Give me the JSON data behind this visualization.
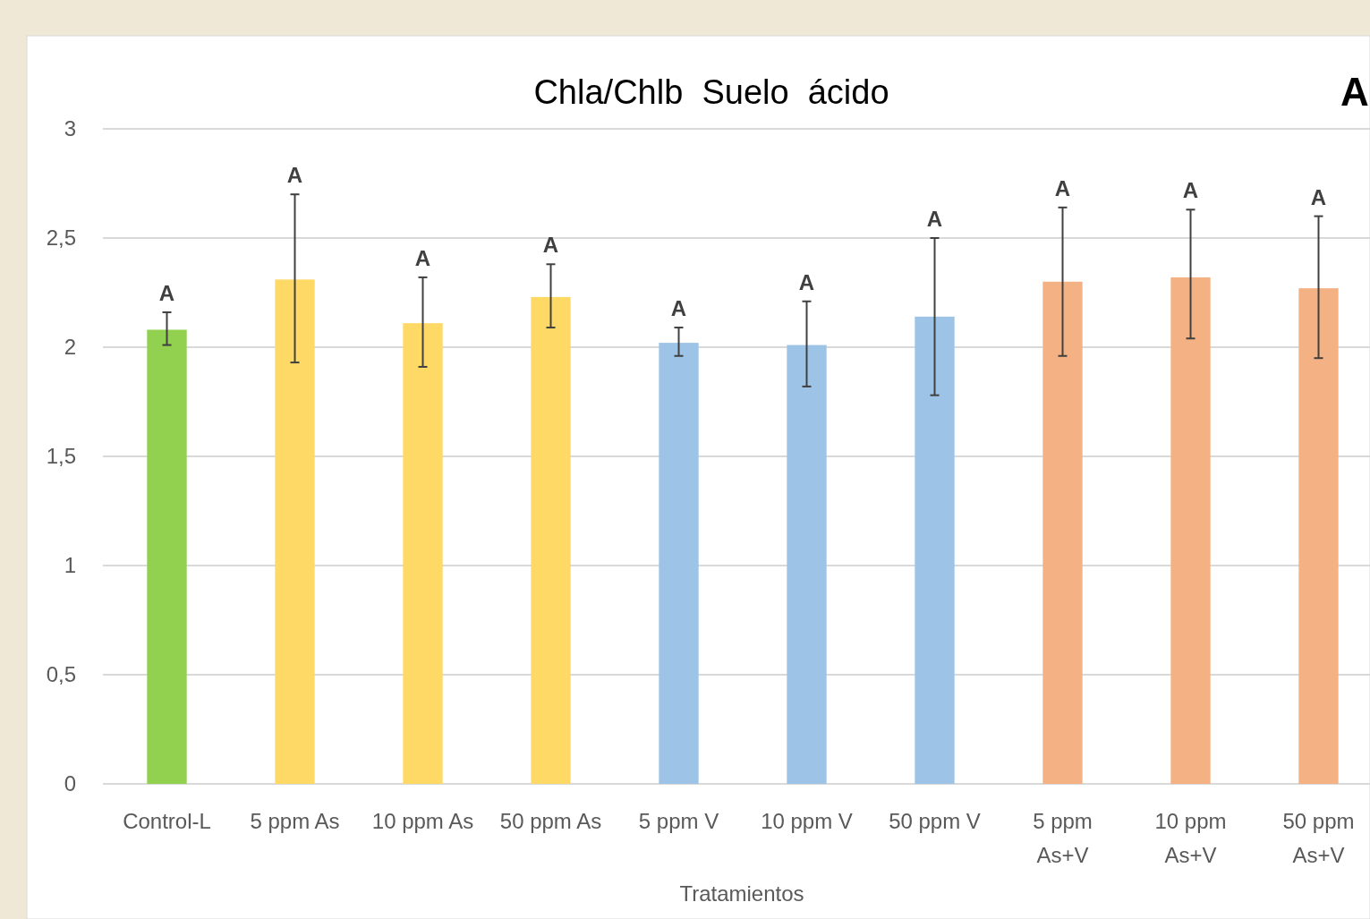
{
  "chart_data": {
    "type": "bar",
    "title": "Chla/Chlb  Suelo  ácido",
    "xlabel": "Tratamientos",
    "categories": [
      "Control-L",
      "5 ppm As",
      "10 ppm As",
      "50 ppm As",
      "5 ppm V",
      "10 ppm V",
      "50 ppm V",
      "5 ppm As+V",
      "10 ppm As+V",
      "50 ppm As+V"
    ],
    "values": [
      2.08,
      2.31,
      2.11,
      2.23,
      2.02,
      2.01,
      2.14,
      2.3,
      2.32,
      2.27
    ],
    "colors": [
      "#92d050",
      "#ffd966",
      "#ffd966",
      "#ffd966",
      "#9dc3e6",
      "#9dc3e6",
      "#9dc3e6",
      "#f4b183",
      "#f4b183",
      "#f4b183"
    ],
    "errors": [
      [
        2.01,
        2.16
      ],
      [
        1.93,
        2.7
      ],
      [
        1.91,
        2.32
      ],
      [
        2.09,
        2.38
      ],
      [
        1.96,
        2.09
      ],
      [
        1.82,
        2.21
      ],
      [
        1.78,
        2.5
      ],
      [
        1.96,
        2.64
      ],
      [
        2.04,
        2.63
      ],
      [
        1.95,
        2.6
      ]
    ],
    "ylim": [
      0,
      3
    ],
    "yticks": [
      {
        "value": 0,
        "label": "0"
      },
      {
        "value": 0.5,
        "label": "0,5"
      },
      {
        "value": 1,
        "label": "1"
      },
      {
        "value": 1.5,
        "label": "1,5"
      },
      {
        "value": 2,
        "label": "2"
      },
      {
        "value": 2.5,
        "label": "2,5"
      },
      {
        "value": 3,
        "label": "3"
      }
    ],
    "grid": "y",
    "annotations": [
      {
        "text": "A",
        "x": "Control-L",
        "y": 2.16
      },
      {
        "text": "A",
        "x": "5 ppm As",
        "y": 2.7
      },
      {
        "text": "A",
        "x": "10 ppm As",
        "y": 2.32
      },
      {
        "text": "A",
        "x": "50 ppm As",
        "y": 2.38
      },
      {
        "text": "A",
        "x": "5 ppm V",
        "y": 2.09
      },
      {
        "text": "A",
        "x": "10 ppm V",
        "y": 2.21
      },
      {
        "text": "A",
        "x": "50 ppm V",
        "y": 2.5
      },
      {
        "text": "A",
        "x": "5 ppm As+V",
        "y": 2.64
      },
      {
        "text": "A",
        "x": "10 ppm As+V",
        "y": 2.63
      },
      {
        "text": "A",
        "x": "50 ppm As+V",
        "y": 2.6
      },
      "A"
    ]
  }
}
